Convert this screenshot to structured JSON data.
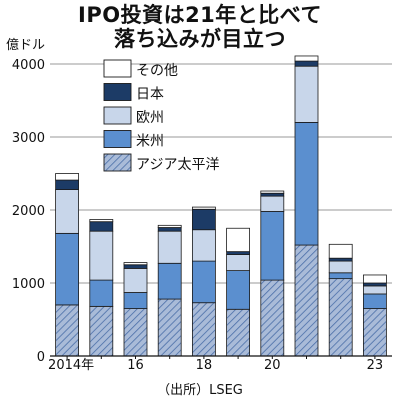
{
  "title_line1": "IPO投資は21年と比べて",
  "title_line2": "落ち込みが目立つ",
  "unit_label": "億ドル",
  "source": "（出所）LSEG",
  "chart_data": {
    "type": "bar",
    "stacked": true,
    "title": "IPO投資は21年と比べて落ち込みが目立つ",
    "ylabel": "億ドル",
    "ylim": [
      0,
      4000
    ],
    "yticks": [
      0,
      1000,
      2000,
      3000,
      4000
    ],
    "categories": [
      "2014",
      "2015",
      "2016",
      "2017",
      "2018",
      "2019",
      "2020",
      "2021",
      "2022",
      "2023"
    ],
    "x_tick_labels": [
      "2014年",
      "",
      "16",
      "",
      "18",
      "",
      "20",
      "",
      "",
      "23"
    ],
    "grid": true,
    "legend_position": "top-left",
    "series": [
      {
        "name": "アジア太平洋",
        "color": "#9fb3d3",
        "pattern": "hatch",
        "values": [
          700,
          680,
          650,
          780,
          730,
          640,
          1040,
          1520,
          1060,
          650
        ]
      },
      {
        "name": "米州",
        "color": "#5b8fcf",
        "values": [
          980,
          360,
          220,
          490,
          570,
          530,
          940,
          1680,
          80,
          200
        ]
      },
      {
        "name": "欧州",
        "color": "#c8d6ea",
        "values": [
          600,
          670,
          330,
          440,
          430,
          220,
          210,
          770,
          160,
          110
        ]
      },
      {
        "name": "日本",
        "color": "#1c3b66",
        "values": [
          130,
          130,
          50,
          50,
          280,
          40,
          40,
          70,
          40,
          40
        ]
      },
      {
        "name": "その他",
        "color": "#ffffff",
        "values": [
          90,
          30,
          30,
          30,
          30,
          320,
          30,
          70,
          190,
          110
        ]
      }
    ]
  }
}
